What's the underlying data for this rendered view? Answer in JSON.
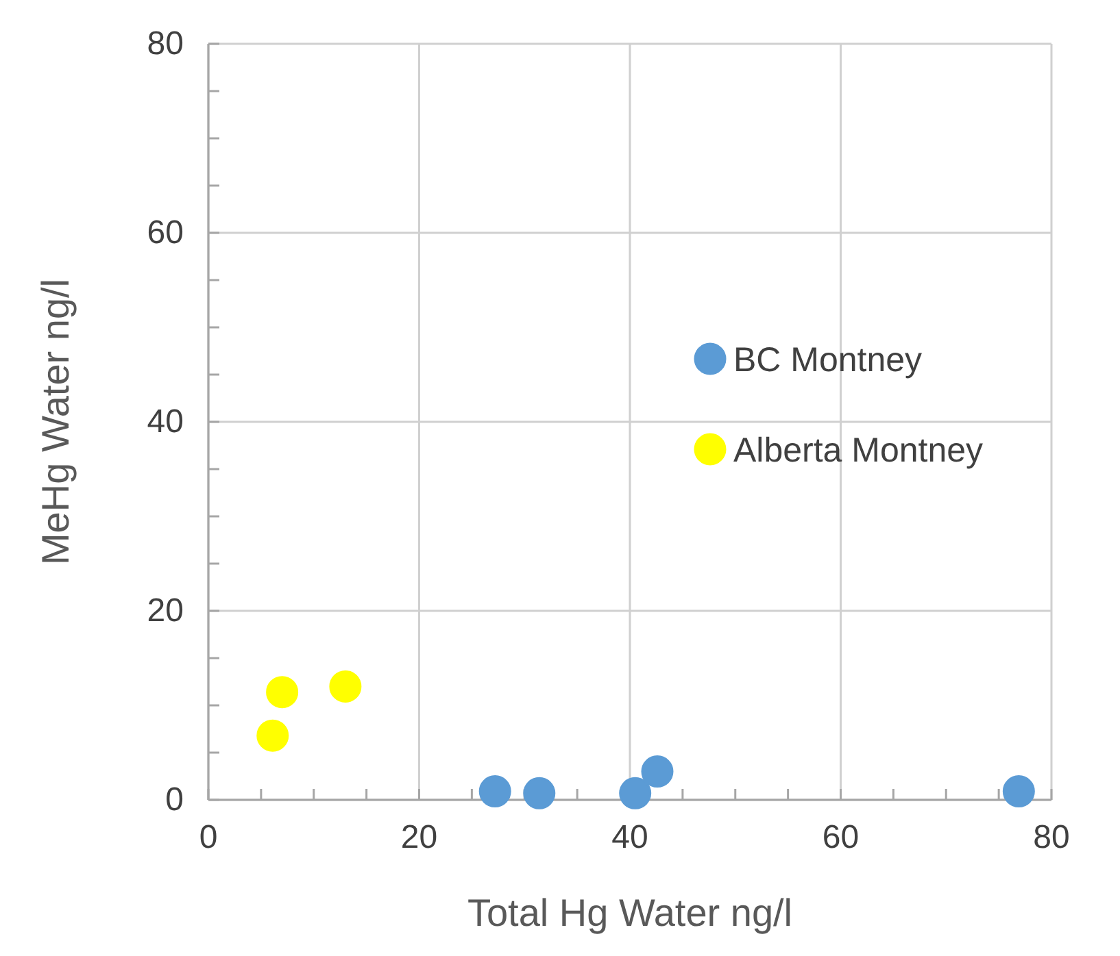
{
  "chart_data": {
    "type": "scatter",
    "xlabel": "Total Hg Water ng/l",
    "ylabel": "MeHg Water ng/l",
    "xlim": [
      0,
      80
    ],
    "ylim": [
      0,
      80
    ],
    "xticks": [
      0,
      {
        "value": 5,
        "label": null
      },
      {
        "value": 10,
        "label": null
      },
      {
        "value": 15,
        "label": null
      },
      20,
      {
        "value": 25,
        "label": null
      },
      {
        "value": 30,
        "label": null
      },
      {
        "value": 35,
        "label": null
      },
      40,
      {
        "value": 45,
        "label": null
      },
      {
        "value": 50,
        "label": null
      },
      {
        "value": 55,
        "label": null
      },
      60,
      {
        "value": 65,
        "label": null
      },
      {
        "value": 70,
        "label": null
      },
      {
        "value": 75,
        "label": null
      },
      80
    ],
    "yticks": [
      0,
      {
        "value": 5,
        "label": null
      },
      {
        "value": 10,
        "label": null
      },
      {
        "value": 15,
        "label": null
      },
      20,
      {
        "value": 25,
        "label": null
      },
      {
        "value": 30,
        "label": null
      },
      {
        "value": 35,
        "label": null
      },
      40,
      {
        "value": 45,
        "label": null
      },
      {
        "value": 50,
        "label": null
      },
      {
        "value": 55,
        "label": null
      },
      60,
      {
        "value": 65,
        "label": null
      },
      {
        "value": 70,
        "label": null
      },
      {
        "value": 75,
        "label": null
      },
      80
    ],
    "grid": true,
    "legend": "right",
    "marker": "circle",
    "series": [
      {
        "name": "BC Montney",
        "color": "#5b9bd5",
        "x": [
          27.2,
          31.4,
          40.5,
          42.6,
          76.9
        ],
        "values": [
          0.9,
          0.7,
          0.7,
          3.0,
          0.9
        ]
      },
      {
        "name": "Alberta Montney",
        "color": "#ffff00",
        "x": [
          6.1,
          7.0,
          13.0
        ],
        "values": [
          6.8,
          11.4,
          12.0
        ]
      }
    ]
  }
}
